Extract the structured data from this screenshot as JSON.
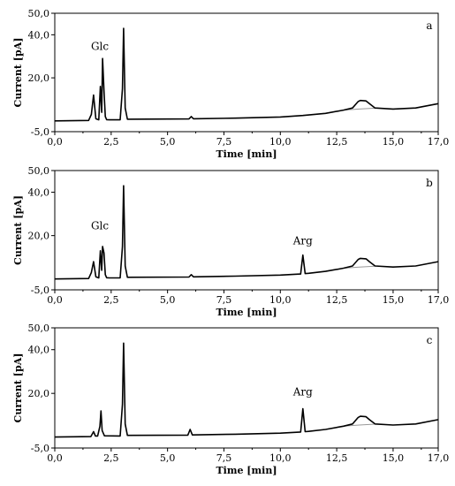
{
  "chart_data": [
    {
      "type": "line",
      "panel_label": "a",
      "xlabel": "Time [min]",
      "ylabel": "Current [pA]",
      "xlim": [
        0,
        17
      ],
      "ylim": [
        -5,
        50
      ],
      "xticks": [
        "0,0",
        "2,5",
        "5,0",
        "7,5",
        "10,0",
        "12,5",
        "15,0",
        "17,0"
      ],
      "yticks": [
        "-5,0",
        "20,0",
        "40,0",
        "50,0"
      ],
      "annotations": [
        {
          "text": "Glc",
          "x": 2.0,
          "y": 33
        }
      ],
      "series": [
        {
          "color": "#000000",
          "x": [
            0,
            1.5,
            1.62,
            1.72,
            1.82,
            1.95,
            2.02,
            2.08,
            2.12,
            2.18,
            2.24,
            2.3,
            2.42,
            2.9,
            3.0,
            3.05,
            3.12,
            3.22,
            5.95,
            6.05,
            6.15,
            8,
            10,
            11,
            12,
            12.8,
            13.2,
            13.45,
            13.55,
            13.8,
            13.95,
            14.2,
            15,
            16,
            17
          ],
          "y": [
            0,
            0.2,
            3,
            12,
            1,
            0.5,
            16,
            4,
            29,
            14,
            2,
            0.6,
            0.5,
            0.5,
            15,
            43,
            6,
            0.8,
            0.9,
            2,
            1,
            1.3,
            1.8,
            2.5,
            3.5,
            5,
            6,
            9,
            9.5,
            9.3,
            8,
            6,
            5.5,
            6,
            8
          ]
        },
        {
          "color": "#999999",
          "x": [
            12.8,
            13.5,
            14.2
          ],
          "y": [
            5,
            5.5,
            5.9
          ]
        }
      ]
    },
    {
      "type": "line",
      "panel_label": "b",
      "xlabel": "Time [min]",
      "ylabel": "Current [pA]",
      "xlim": [
        0,
        17
      ],
      "ylim": [
        -5,
        50
      ],
      "xticks": [
        "0,0",
        "2,5",
        "5,0",
        "7,5",
        "10,0",
        "12,5",
        "15,0",
        "17,0"
      ],
      "yticks": [
        "-5,0",
        "20,0",
        "40,0",
        "50,0"
      ],
      "annotations": [
        {
          "text": "Glc",
          "x": 2.0,
          "y": 23
        },
        {
          "text": "Arg",
          "x": 11.0,
          "y": 16
        }
      ],
      "series": [
        {
          "color": "#000000",
          "x": [
            0,
            1.5,
            1.62,
            1.72,
            1.82,
            1.95,
            2.02,
            2.08,
            2.12,
            2.18,
            2.24,
            2.3,
            2.42,
            2.9,
            3.0,
            3.05,
            3.12,
            3.22,
            5.95,
            6.05,
            6.15,
            8,
            10,
            10.9,
            11.0,
            11.1,
            11.25,
            12,
            12.8,
            13.2,
            13.45,
            13.55,
            13.8,
            13.95,
            14.2,
            15,
            16,
            17
          ],
          "y": [
            0,
            0.2,
            3,
            8,
            1,
            0.5,
            13,
            4,
            15,
            12,
            2,
            0.6,
            0.5,
            0.5,
            15,
            43,
            6,
            0.8,
            0.9,
            2,
            1,
            1.3,
            1.8,
            2.3,
            11,
            2.5,
            2.6,
            3.5,
            5,
            6,
            9,
            9.5,
            9.3,
            8,
            6,
            5.5,
            6,
            8
          ]
        },
        {
          "color": "#999999",
          "x": [
            12.8,
            13.5,
            14.2
          ],
          "y": [
            5,
            5.5,
            5.9
          ]
        }
      ]
    },
    {
      "type": "line",
      "panel_label": "c",
      "xlabel": "Time [min]",
      "ylabel": "Current [pA]",
      "xlim": [
        0,
        17
      ],
      "ylim": [
        -5,
        50
      ],
      "xticks": [
        "0,0",
        "2,5",
        "5,0",
        "7,5",
        "10,0",
        "12,5",
        "15,0",
        "17,0"
      ],
      "yticks": [
        "-5,0",
        "20,0",
        "40,0",
        "50,0"
      ],
      "annotations": [
        {
          "text": "Arg",
          "x": 11.0,
          "y": 19
        }
      ],
      "series": [
        {
          "color": "#000000",
          "x": [
            0,
            1.6,
            1.72,
            1.8,
            1.9,
            2.0,
            2.05,
            2.1,
            2.2,
            2.9,
            3.0,
            3.05,
            3.12,
            3.22,
            5.9,
            6.0,
            6.1,
            8,
            10,
            10.9,
            11.0,
            11.1,
            11.25,
            12,
            12.8,
            13.2,
            13.45,
            13.55,
            13.8,
            13.95,
            14.2,
            15,
            16,
            17
          ],
          "y": [
            0,
            0.2,
            2.5,
            0.5,
            0.5,
            5,
            12,
            3,
            0.6,
            0.5,
            15,
            43,
            6,
            0.8,
            0.9,
            3.5,
            1,
            1.3,
            1.8,
            2.3,
            13,
            2.5,
            2.6,
            3.5,
            5,
            6,
            9,
            9.5,
            9.3,
            8,
            6,
            5.5,
            6,
            8
          ]
        },
        {
          "color": "#999999",
          "x": [
            12.8,
            13.5,
            14.2
          ],
          "y": [
            5,
            5.5,
            5.9
          ]
        }
      ]
    }
  ]
}
